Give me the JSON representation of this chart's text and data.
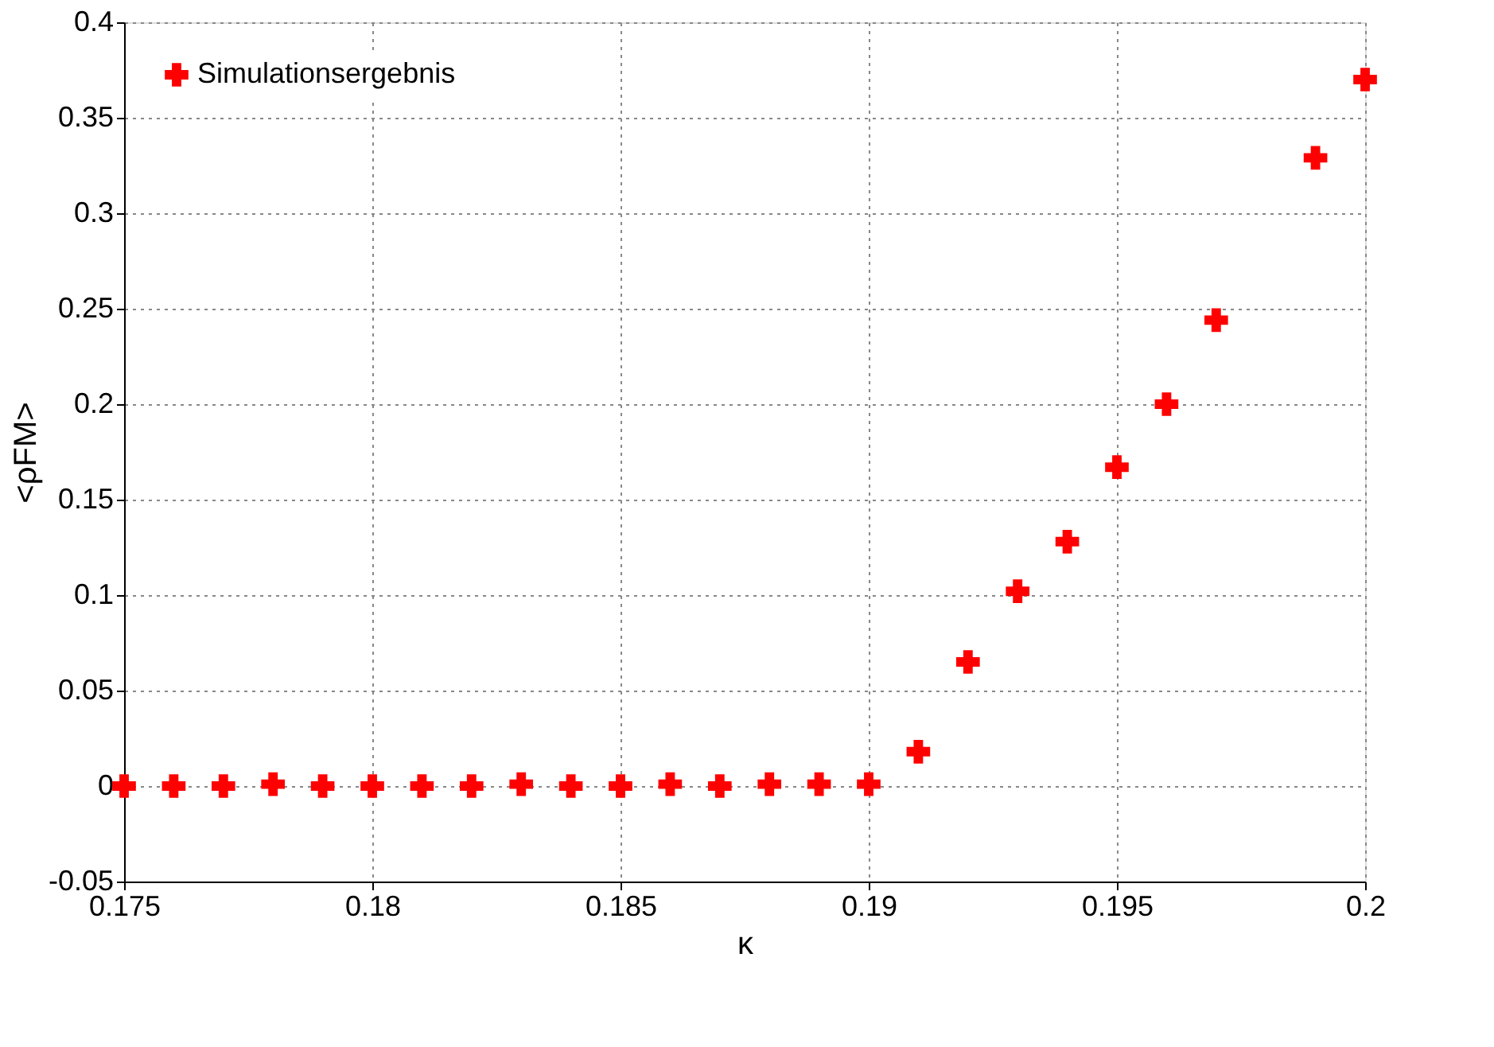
{
  "chart_data": {
    "type": "scatter",
    "xlabel": "κ",
    "ylabel": "<ρFM>",
    "x": [
      0.175,
      0.176,
      0.177,
      0.178,
      0.179,
      0.18,
      0.181,
      0.182,
      0.183,
      0.184,
      0.185,
      0.186,
      0.187,
      0.188,
      0.189,
      0.19,
      0.191,
      0.192,
      0.193,
      0.194,
      0.195,
      0.196,
      0.197,
      0.199,
      0.2
    ],
    "series": [
      {
        "name": "Simulationsergebnis",
        "color": "#ff0000",
        "values": [
          0,
          0,
          0,
          0.001,
          0,
          0,
          0,
          0,
          0.001,
          0,
          0,
          0.001,
          0,
          0.001,
          0.001,
          0.001,
          0.018,
          0.065,
          0.102,
          0.128,
          0.167,
          0.2,
          0.244,
          0.329,
          0.37
        ]
      }
    ],
    "xlim": [
      0.175,
      0.2
    ],
    "xticks": [
      0.175,
      0.18,
      0.185,
      0.19,
      0.195,
      0.2
    ],
    "ylim": [
      -0.05,
      0.4
    ],
    "yticks": [
      -0.05,
      0,
      0.05,
      0.1,
      0.15,
      0.2,
      0.25,
      0.3,
      0.35,
      0.4
    ],
    "grid": true,
    "legend": "top left",
    "marker": "cross"
  }
}
